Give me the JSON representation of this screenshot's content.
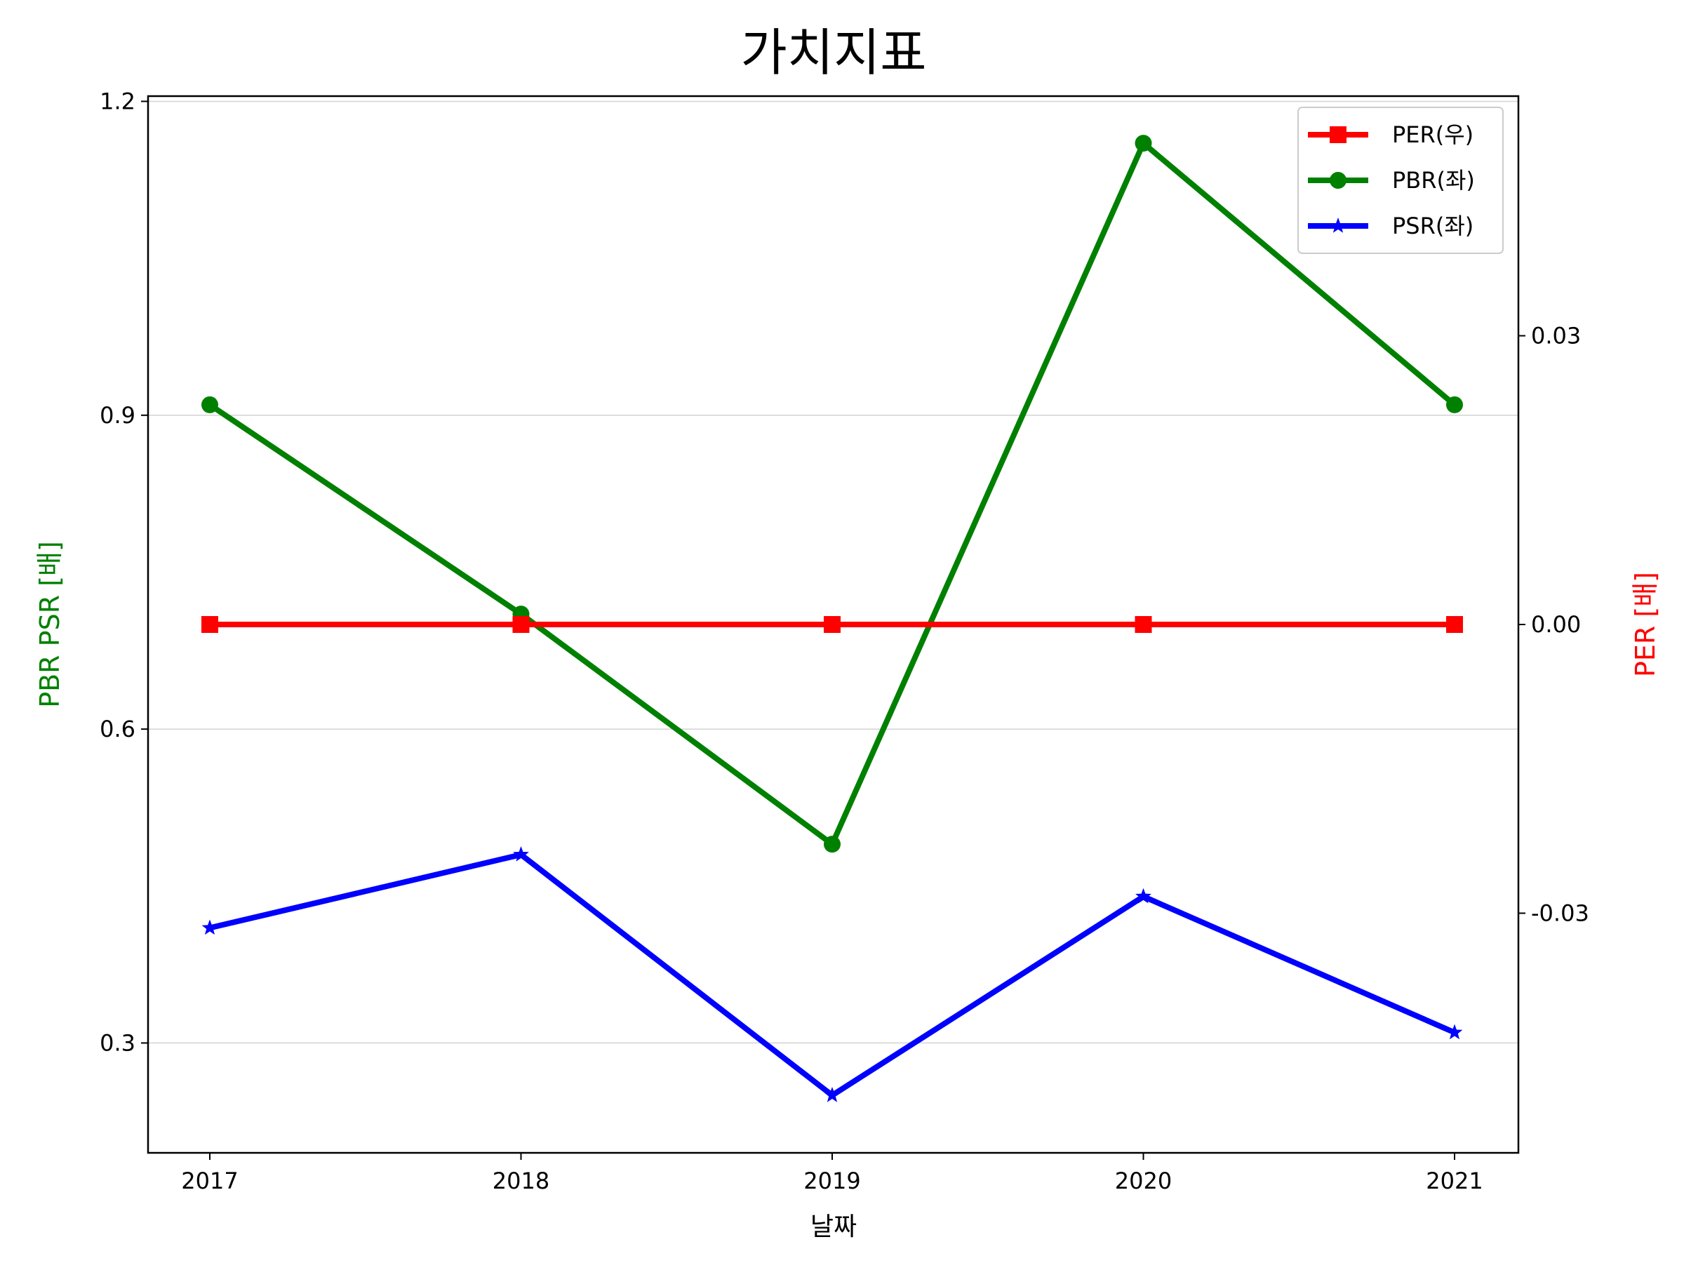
{
  "chart_data": {
    "type": "line",
    "title": "가치지표",
    "xlabel": "날짜",
    "ylabel_left": "PBR PSR [배]",
    "ylabel_right": "PER [배]",
    "categories": [
      "2017",
      "2018",
      "2019",
      "2020",
      "2021"
    ],
    "left_axis": {
      "ylim": [
        0.195,
        1.205
      ],
      "ticks": [
        0.3,
        0.6,
        0.9,
        1.2
      ],
      "tick_labels": [
        "0.3",
        "0.6",
        "0.9",
        "1.2"
      ]
    },
    "right_axis": {
      "ylim": [
        -0.0549,
        0.0549
      ],
      "ticks": [
        -0.03,
        0.0,
        0.03
      ],
      "tick_labels": [
        "-0.03",
        "0.00",
        "0.03"
      ]
    },
    "series": [
      {
        "name": "PER(우)",
        "axis": "right",
        "color": "#ff0000",
        "marker": "square",
        "values": [
          0,
          0,
          0,
          0,
          0
        ]
      },
      {
        "name": "PBR(좌)",
        "axis": "left",
        "color": "#008000",
        "marker": "circle",
        "values": [
          0.91,
          0.71,
          0.49,
          1.16,
          0.91
        ]
      },
      {
        "name": "PSR(좌)",
        "axis": "left",
        "color": "#0000ff",
        "marker": "star",
        "values": [
          0.41,
          0.48,
          0.25,
          0.44,
          0.31
        ]
      }
    ],
    "grid": "horizontal (left axis)",
    "legend_position": "top-right",
    "colors": {
      "left_label": "#008000",
      "right_label": "#ff0000"
    }
  }
}
